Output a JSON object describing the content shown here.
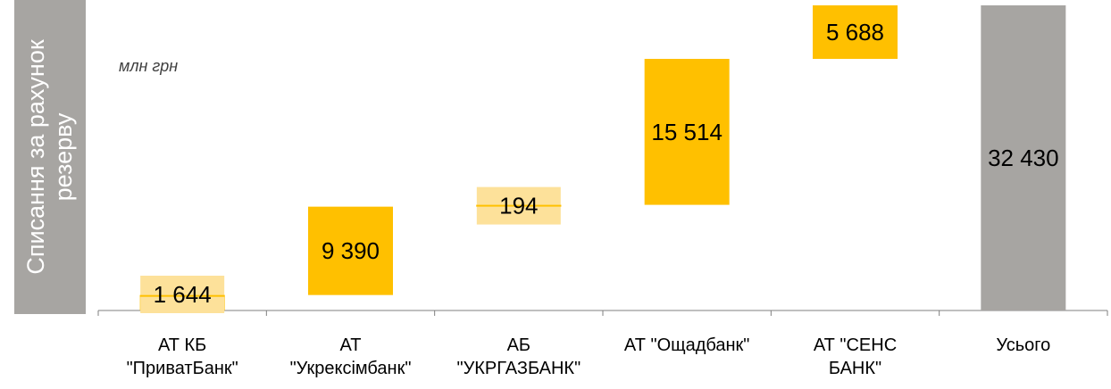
{
  "side_title": [
    "Списання за рахунок",
    "резерву"
  ],
  "unit_label": "млн грн",
  "chart_data": {
    "type": "bar",
    "subtype": "waterfall",
    "categories": [
      [
        "АТ КБ",
        "\"ПриватБанк\""
      ],
      [
        "АТ",
        "\"Укрексімбанк\""
      ],
      [
        "АБ",
        "\"УКРГАЗБАНК\""
      ],
      [
        "АТ \"Ощадбанк\""
      ],
      [
        "АТ \"СЕНС",
        "БАНК\""
      ],
      [
        "Усього"
      ]
    ],
    "values": [
      1644,
      9390,
      194,
      15514,
      5688,
      32430
    ],
    "labels": [
      "1 644",
      "9 390",
      "194",
      "15 514",
      "5 688",
      "32 430"
    ],
    "is_total": [
      false,
      false,
      false,
      false,
      false,
      true
    ],
    "ylim": [
      0,
      32430
    ],
    "colors": {
      "bar": "#ffc000",
      "total": "#a7a5a2",
      "label_bg": "#fde19a",
      "axis": "#7f7f7f"
    }
  }
}
